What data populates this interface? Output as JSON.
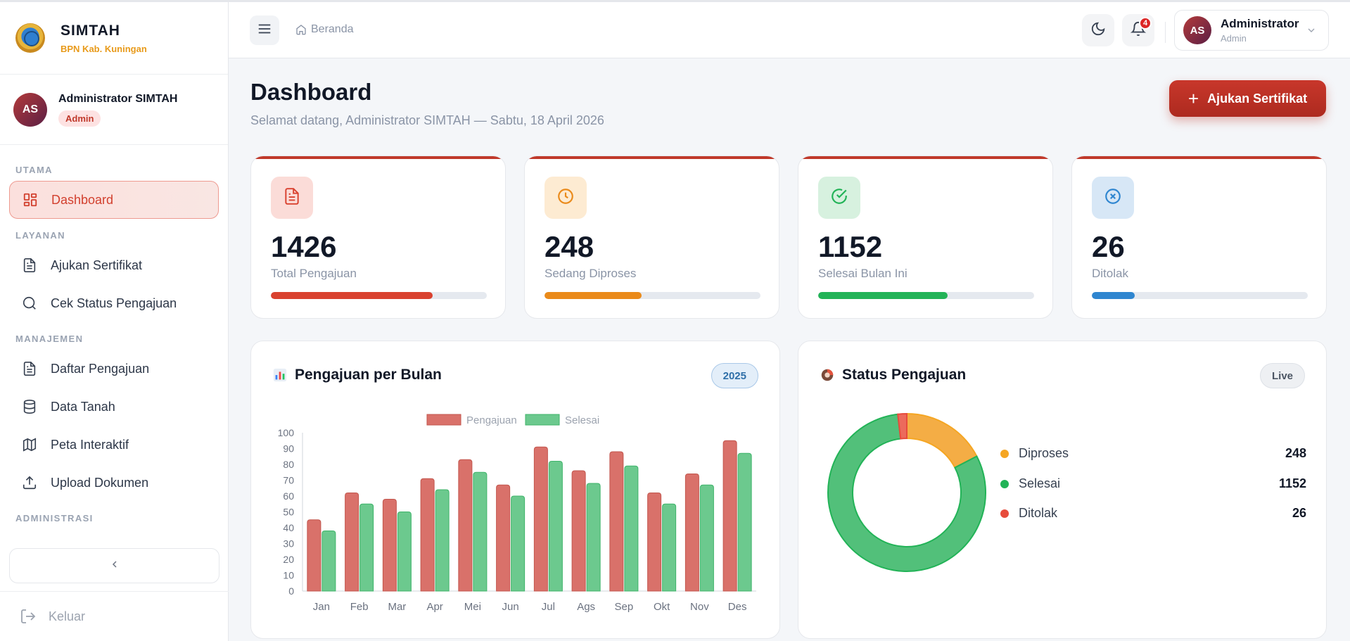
{
  "brand": {
    "title": "SIMTAH",
    "subtitle": "BPN Kab. Kuningan"
  },
  "sidebar_user": {
    "initials": "AS",
    "name": "Administrator SIMTAH",
    "role": "Admin"
  },
  "nav": {
    "sections": [
      "UTAMA",
      "LAYANAN",
      "MANAJEMEN",
      "ADMINISTRASI"
    ],
    "items": [
      {
        "label": "Dashboard",
        "icon": "grid-icon",
        "active": true
      },
      {
        "label": "Ajukan Sertifikat",
        "icon": "document-icon"
      },
      {
        "label": "Cek Status Pengajuan",
        "icon": "search-icon"
      },
      {
        "label": "Daftar Pengajuan",
        "icon": "document-icon"
      },
      {
        "label": "Data Tanah",
        "icon": "database-icon"
      },
      {
        "label": "Peta Interaktif",
        "icon": "map-icon"
      },
      {
        "label": "Upload Dokumen",
        "icon": "upload-icon"
      }
    ],
    "collapse_icon": "chevron-left-icon",
    "logout": "Keluar"
  },
  "header": {
    "breadcrumb": "Beranda",
    "notification_count": "4",
    "user": {
      "initials": "AS",
      "name": "Administrator",
      "role": "Admin"
    }
  },
  "page": {
    "title": "Dashboard",
    "subtitle": "Selamat datang, Administrator SIMTAH — Sabtu, 18 April 2026",
    "cta_label": "Ajukan Sertifikat"
  },
  "stats": [
    {
      "value": "1426",
      "label": "Total Pengajuan",
      "progress": 0.75,
      "color": "#d9412f",
      "icon_bg": "#fbdcd8",
      "icon": "document-icon"
    },
    {
      "value": "248",
      "label": "Sedang Diproses",
      "progress": 0.45,
      "color": "#ea8a1a",
      "icon_bg": "#fdebd2",
      "icon": "clock-icon"
    },
    {
      "value": "1152",
      "label": "Selesai Bulan Ini",
      "progress": 0.6,
      "color": "#22b357",
      "icon_bg": "#d7f1df",
      "icon": "check-circle-icon"
    },
    {
      "value": "26",
      "label": "Ditolak",
      "progress": 0.2,
      "color": "#2f86d0",
      "icon_bg": "#d7e7f6",
      "icon": "x-circle-icon"
    }
  ],
  "bar_panel": {
    "title": "Pengajuan per Bulan",
    "badge": "2025",
    "title_icon": "bar-chart-icon"
  },
  "donut_panel": {
    "title": "Status Pengajuan",
    "badge": "Live",
    "title_icon": "donut-icon"
  },
  "chart_data": [
    {
      "type": "bar",
      "categories": [
        "Jan",
        "Feb",
        "Mar",
        "Apr",
        "Mei",
        "Jun",
        "Jul",
        "Ags",
        "Sep",
        "Okt",
        "Nov",
        "Des"
      ],
      "series": [
        {
          "name": "Pengajuan",
          "values": [
            45,
            62,
            58,
            71,
            83,
            67,
            91,
            76,
            88,
            62,
            74,
            95
          ],
          "color": "#d9716a"
        },
        {
          "name": "Selesai",
          "values": [
            38,
            55,
            50,
            64,
            75,
            60,
            82,
            68,
            79,
            55,
            67,
            87
          ],
          "color": "#6cc98e"
        }
      ],
      "ylim": [
        0,
        100
      ],
      "yticks": [
        0,
        10,
        20,
        30,
        40,
        50,
        60,
        70,
        80,
        90,
        100
      ],
      "legend": "top-center",
      "grid": false
    },
    {
      "type": "pie",
      "donut": true,
      "labels": [
        "Diproses",
        "Selesai",
        "Ditolak"
      ],
      "values": [
        248,
        1152,
        26
      ],
      "colors": [
        "#f5a623",
        "#22b357",
        "#e74c3c"
      ],
      "fill_colors": [
        "#f4ad45",
        "#52c07a",
        "#ec6a5c"
      ]
    }
  ]
}
